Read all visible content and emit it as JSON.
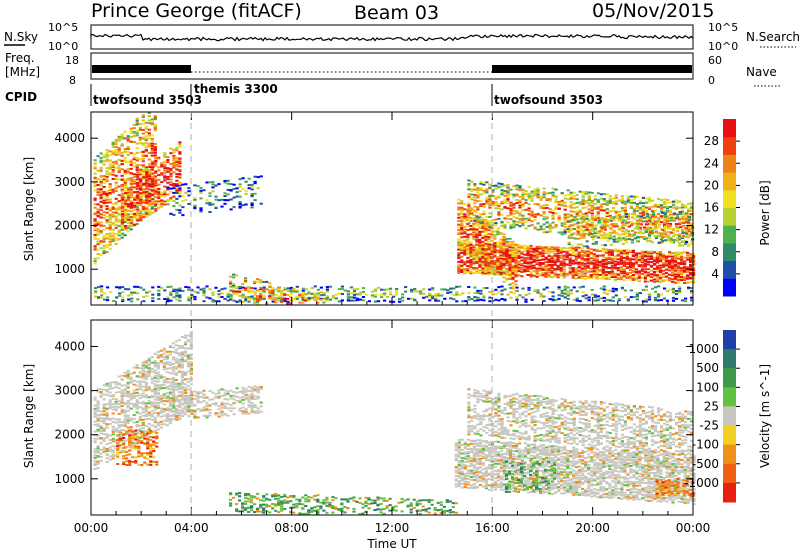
{
  "header": {
    "station": "Prince George (fitACF)",
    "beam": "Beam 03",
    "date": "05/Nov/2015"
  },
  "noise_panel": {
    "left_label": "N.Sky",
    "right_label": "N.Search",
    "left_ticks": [
      "10^5",
      "10^0"
    ],
    "right_ticks": [
      "10^5",
      "10^0"
    ]
  },
  "freq_panel": {
    "left_label_1": "Freq.",
    "left_label_2": "[MHz]",
    "right_label": "Nave",
    "left_ticks": [
      "18",
      "8"
    ],
    "right_ticks": [
      "60",
      "0"
    ]
  },
  "cpid_panel": {
    "label": "CPID",
    "segments": [
      {
        "name": "twofsound 3503",
        "start_hour": 0,
        "end_hour": 4
      },
      {
        "name": "themis 3300",
        "start_hour": 4,
        "end_hour": 16
      },
      {
        "name": "twofsound 3503",
        "start_hour": 16,
        "end_hour": 24
      }
    ]
  },
  "x_axis": {
    "label": "Time UT",
    "ticks": [
      "00:00",
      "04:00",
      "08:00",
      "12:00",
      "16:00",
      "20:00",
      "00:00"
    ],
    "range_hours": [
      0,
      24
    ]
  },
  "chart_data": [
    {
      "type": "heatmap",
      "name": "power",
      "xlabel": "Time UT",
      "ylabel": "Slant Range [km]",
      "ylim": [
        180,
        4600
      ],
      "yticks": [
        "1000",
        "2000",
        "3000",
        "4000"
      ],
      "ytick_values": [
        1000,
        2000,
        3000,
        4000
      ],
      "colorbar": {
        "label": "Power [dB]",
        "ticks": [
          "28",
          "24",
          "20",
          "16",
          "12",
          "8",
          "4"
        ],
        "tick_values": [
          28,
          24,
          20,
          16,
          12,
          8,
          4
        ],
        "range": [
          0,
          32
        ],
        "colors": [
          "#0000ff",
          "#1f4fa8",
          "#2f8a6a",
          "#4fb04f",
          "#b8d030",
          "#f0e020",
          "#f0b018",
          "#f08018",
          "#f04010",
          "#e81010"
        ]
      },
      "echo_bands": [
        {
          "t0": 0.1,
          "t1": 2.6,
          "r0": 1100,
          "r1": 3500,
          "slope": 550,
          "level": 0.55,
          "density": 0.55
        },
        {
          "t0": 1.2,
          "t1": 3.6,
          "r0": 1800,
          "r1": 3000,
          "slope": 400,
          "level": 0.7,
          "density": 0.6
        },
        {
          "t0": 3.0,
          "t1": 6.8,
          "r0": 2200,
          "r1": 2900,
          "slope": 60,
          "level": 0.1,
          "density": 0.25
        },
        {
          "t0": 0.0,
          "t1": 24.0,
          "r0": 250,
          "r1": 600,
          "slope": 0,
          "level": 0.15,
          "density": 0.35
        },
        {
          "t0": 5.5,
          "t1": 9.5,
          "r0": 300,
          "r1": 900,
          "slope": -140,
          "level": 0.5,
          "density": 0.4
        },
        {
          "t0": 14.6,
          "t1": 24.0,
          "r0": 900,
          "r1": 1600,
          "slope": -25,
          "level": 0.75,
          "density": 0.85
        },
        {
          "t0": 14.6,
          "t1": 17.0,
          "r0": 1500,
          "r1": 2600,
          "slope": -450,
          "level": 0.6,
          "density": 0.7
        },
        {
          "t0": 15.0,
          "t1": 24.0,
          "r0": 2000,
          "r1": 3000,
          "slope": -55,
          "level": 0.45,
          "density": 0.5
        },
        {
          "t0": 19.0,
          "t1": 24.0,
          "r0": 1500,
          "r1": 2200,
          "slope": 25,
          "level": 0.4,
          "density": 0.4
        }
      ]
    },
    {
      "type": "heatmap",
      "name": "velocity",
      "xlabel": "Time UT",
      "ylabel": "Slant Range [km]",
      "ylim": [
        180,
        4600
      ],
      "yticks": [
        "1000",
        "2000",
        "3000",
        "4000"
      ],
      "ytick_values": [
        1000,
        2000,
        3000,
        4000
      ],
      "colorbar": {
        "label": "Velocity [m s^-1]",
        "ticks": [
          "1000",
          "500",
          "100",
          "25",
          "-25",
          "-100",
          "-500",
          "-1000"
        ],
        "tick_values": [
          1000,
          500,
          100,
          25,
          -25,
          -100,
          -500,
          -1000
        ],
        "colors": [
          "#2040a8",
          "#2f7a6a",
          "#3f9a4a",
          "#60c040",
          "#c8c8c0",
          "#f0d020",
          "#f09018",
          "#f06010",
          "#e82010"
        ]
      },
      "echo_bands": [
        {
          "t0": 0.1,
          "t1": 4.0,
          "r0": 1200,
          "r1": 3000,
          "slope": 350,
          "vel": "ground",
          "density": 0.6
        },
        {
          "t0": 1.0,
          "t1": 2.6,
          "r0": 1300,
          "r1": 2100,
          "slope": 0,
          "vel": "neg",
          "density": 0.45
        },
        {
          "t0": 3.0,
          "t1": 6.8,
          "r0": 2300,
          "r1": 2900,
          "slope": 50,
          "vel": "ground",
          "density": 0.5
        },
        {
          "t0": 5.5,
          "t1": 14.5,
          "r0": 250,
          "r1": 700,
          "slope": -20,
          "vel": "pos",
          "density": 0.45
        },
        {
          "t0": 14.5,
          "t1": 24.0,
          "r0": 800,
          "r1": 1900,
          "slope": -40,
          "vel": "ground",
          "density": 0.8
        },
        {
          "t0": 15.0,
          "t1": 24.0,
          "r0": 2000,
          "r1": 3000,
          "slope": -55,
          "vel": "ground",
          "density": 0.55
        },
        {
          "t0": 22.5,
          "t1": 24.0,
          "r0": 600,
          "r1": 1000,
          "slope": 0,
          "vel": "neg",
          "density": 0.6
        },
        {
          "t0": 16.5,
          "t1": 18.5,
          "r0": 700,
          "r1": 1400,
          "slope": 0,
          "vel": "pos",
          "density": 0.3
        }
      ]
    }
  ]
}
